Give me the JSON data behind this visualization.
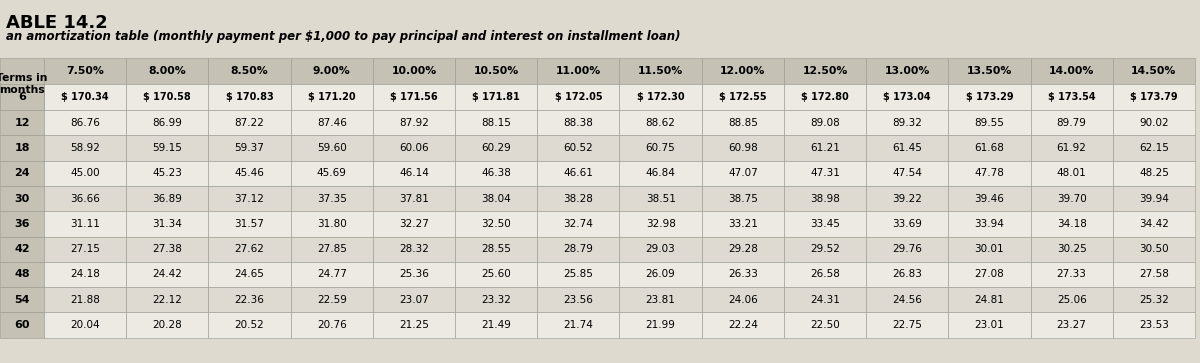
{
  "title": "ABLE 14.2",
  "subtitle": "an amortization table (monthly payment per $1,000 to pay principal and interest on installment loan)",
  "rates": [
    "7.50%",
    "8.00%",
    "8.50%",
    "9.00%",
    "10.00%",
    "10.50%",
    "11.00%",
    "11.50%",
    "12.00%",
    "12.50%",
    "13.00%",
    "13.50%",
    "14.00%",
    "14.50%"
  ],
  "row_labels": [
    "6",
    "12",
    "18",
    "24",
    "30",
    "36",
    "42",
    "48",
    "54",
    "60"
  ],
  "dollar_row": [
    "$ 170.34",
    "$ 170.58",
    "$ 170.83",
    "$ 171.20",
    "$ 171.56",
    "$ 171.81",
    "$ 172.05",
    "$ 172.30",
    "$ 172.55",
    "$ 172.80",
    "$ 173.04",
    "$ 173.29",
    "$ 173.54",
    "$ 173.79"
  ],
  "data": [
    [
      "86.76",
      "86.99",
      "87.22",
      "87.46",
      "87.92",
      "88.15",
      "88.38",
      "88.62",
      "88.85",
      "89.08",
      "89.32",
      "89.55",
      "89.79",
      "90.02"
    ],
    [
      "58.92",
      "59.15",
      "59.37",
      "59.60",
      "60.06",
      "60.29",
      "60.52",
      "60.75",
      "60.98",
      "61.21",
      "61.45",
      "61.68",
      "61.92",
      "62.15"
    ],
    [
      "45.00",
      "45.23",
      "45.46",
      "45.69",
      "46.14",
      "46.38",
      "46.61",
      "46.84",
      "47.07",
      "47.31",
      "47.54",
      "47.78",
      "48.01",
      "48.25"
    ],
    [
      "36.66",
      "36.89",
      "37.12",
      "37.35",
      "37.81",
      "38.04",
      "38.28",
      "38.51",
      "38.75",
      "38.98",
      "39.22",
      "39.46",
      "39.70",
      "39.94"
    ],
    [
      "31.11",
      "31.34",
      "31.57",
      "31.80",
      "32.27",
      "32.50",
      "32.74",
      "32.98",
      "33.21",
      "33.45",
      "33.69",
      "33.94",
      "34.18",
      "34.42"
    ],
    [
      "27.15",
      "27.38",
      "27.62",
      "27.85",
      "28.32",
      "28.55",
      "28.79",
      "29.03",
      "29.28",
      "29.52",
      "29.76",
      "30.01",
      "30.25",
      "30.50"
    ],
    [
      "24.18",
      "24.42",
      "24.65",
      "24.77",
      "25.36",
      "25.60",
      "25.85",
      "26.09",
      "26.33",
      "26.58",
      "26.83",
      "27.08",
      "27.33",
      "27.58"
    ],
    [
      "21.88",
      "22.12",
      "22.36",
      "22.59",
      "23.07",
      "23.32",
      "23.56",
      "23.81",
      "24.06",
      "24.31",
      "24.56",
      "24.81",
      "25.06",
      "25.32"
    ],
    [
      "20.04",
      "20.28",
      "20.52",
      "20.76",
      "21.25",
      "21.49",
      "21.74",
      "21.99",
      "22.24",
      "22.50",
      "22.75",
      "23.01",
      "23.27",
      "23.53"
    ]
  ],
  "bg_color": "#dedad0",
  "header_bg": "#c5c1b4",
  "cell_bg_light": "#eceae2",
  "cell_bg_dark": "#dedad2",
  "title_color": "#000000",
  "border_color": "#999990",
  "title_fontsize": 13,
  "subtitle_fontsize": 8.5,
  "header_fontsize": 7.8,
  "data_fontsize": 7.5,
  "label_fontsize": 8.0
}
